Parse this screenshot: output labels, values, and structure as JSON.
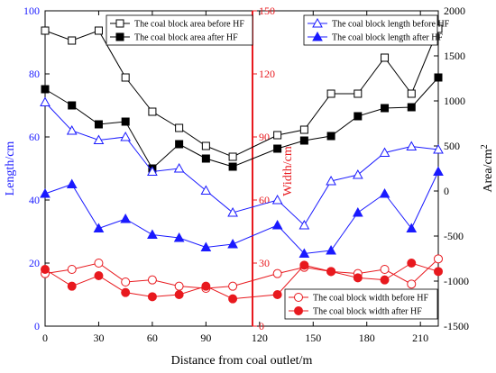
{
  "chart_data": {
    "type": "line",
    "x": [
      0,
      15,
      30,
      45,
      60,
      75,
      90,
      105,
      130,
      145,
      160,
      175,
      190,
      205,
      220
    ],
    "xlabel": "Distance from coal outlet/m",
    "xlim": [
      0,
      220
    ],
    "xticks": [
      "0",
      "30",
      "60",
      "90",
      "120",
      "150",
      "180",
      "210"
    ],
    "axes": {
      "length": {
        "label": "Length/cm",
        "lim": [
          0,
          100
        ],
        "ticks": [
          "0",
          "20",
          "40",
          "60",
          "80",
          "100"
        ],
        "color": "#1a1aff"
      },
      "width": {
        "label": "Width/cm",
        "lim": [
          0,
          150
        ],
        "ticks": [
          "0",
          "30",
          "60",
          "90",
          "120",
          "150"
        ],
        "color": "#e8191e"
      },
      "area": {
        "label": "Area/cm",
        "label_sup": "2",
        "lim": [
          -1500,
          2000
        ],
        "ticks": [
          "-1500",
          "-1000",
          "-500",
          "0",
          "500",
          "1000",
          "1500",
          "2000"
        ],
        "color": "#000000"
      }
    },
    "series": [
      {
        "name": "The coal block area before HF",
        "axis": "area",
        "color": "#000000",
        "marker": "square-open",
        "values": [
          1780,
          1670,
          1780,
          1260,
          880,
          700,
          500,
          380,
          620,
          680,
          1080,
          1080,
          1480,
          1080,
          1800
        ]
      },
      {
        "name": "The coal block area after HF",
        "axis": "area",
        "color": "#000000",
        "marker": "square-filled",
        "values": [
          1130,
          950,
          740,
          770,
          250,
          520,
          360,
          270,
          470,
          560,
          610,
          830,
          920,
          930,
          1260
        ]
      },
      {
        "name": "The coal block length before HF",
        "axis": "length",
        "color": "#1a1aff",
        "marker": "triangle-open",
        "values": [
          71,
          62,
          59,
          60,
          49,
          50,
          43,
          36,
          40,
          32,
          46,
          48,
          55,
          57,
          56
        ]
      },
      {
        "name": "The coal block length after HF",
        "axis": "length",
        "color": "#1a1aff",
        "marker": "triangle-filled",
        "values": [
          42,
          45,
          31,
          34,
          29,
          28,
          25,
          26,
          32,
          23,
          24,
          36,
          42,
          31,
          49
        ]
      },
      {
        "name": "The coal block width before HF",
        "axis": "width",
        "color": "#e8191e",
        "marker": "circle-open",
        "values": [
          25,
          27,
          30,
          21,
          22,
          19,
          18,
          19,
          25,
          28,
          26,
          25,
          27,
          20,
          32
        ]
      },
      {
        "name": "The coal block width after HF",
        "axis": "width",
        "color": "#e8191e",
        "marker": "circle-filled",
        "values": [
          27,
          19,
          24,
          16,
          14,
          15,
          19,
          13,
          15,
          29,
          26,
          23,
          22,
          30,
          26
        ]
      }
    ],
    "legends": [
      {
        "placement": "top-left",
        "items": [
          0,
          1
        ]
      },
      {
        "placement": "top-right",
        "items": [
          2,
          3
        ]
      },
      {
        "placement": "bottom-right",
        "items": [
          4,
          5
        ]
      }
    ]
  }
}
